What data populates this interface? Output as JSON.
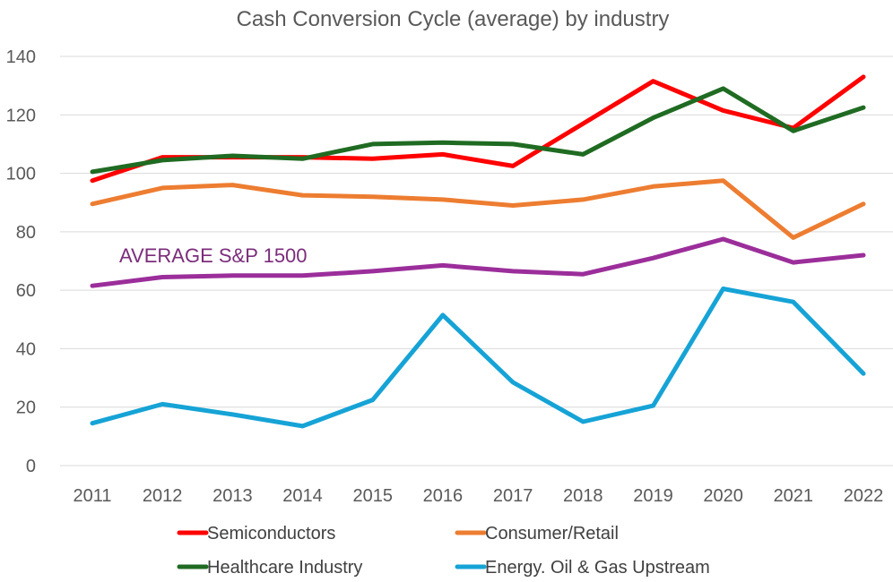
{
  "chart_data": {
    "type": "line",
    "title": "Cash Conversion Cycle (average) by industry",
    "xlabel": "",
    "ylabel": "",
    "categories": [
      "2011",
      "2012",
      "2013",
      "2014",
      "2015",
      "2016",
      "2017",
      "2018",
      "2019",
      "2020",
      "2021",
      "2022"
    ],
    "ylim": [
      0,
      140
    ],
    "yticks": [
      0,
      20,
      40,
      60,
      80,
      100,
      120,
      140
    ],
    "grid": true,
    "legend_position": "bottom",
    "series": [
      {
        "name": "Semiconductors",
        "color": "#ff0000",
        "values": [
          97.5,
          105.5,
          105.5,
          105.5,
          105,
          106.5,
          102.5,
          117,
          131.5,
          121.5,
          115.5,
          133
        ]
      },
      {
        "name": "Consumer/Retail",
        "color": "#ed7d31",
        "values": [
          89.5,
          95,
          96,
          92.5,
          92,
          91,
          89,
          91,
          95.5,
          97.5,
          78,
          89.5
        ]
      },
      {
        "name": "Healthcare Industry",
        "color": "#1f6b22",
        "values": [
          100.5,
          104.5,
          106,
          105,
          110,
          110.5,
          110,
          106.5,
          119,
          129,
          114.5,
          122.5
        ]
      },
      {
        "name": "Energy. Oil & Gas Upstream",
        "color": "#16a3d6",
        "values": [
          14.5,
          21,
          17.5,
          13.5,
          22.5,
          51.5,
          28.5,
          15,
          20.5,
          60.5,
          56,
          31.5
        ]
      },
      {
        "name": "",
        "color": "#9b2e9a",
        "values": [
          61.5,
          64.5,
          65,
          65,
          66.5,
          68.5,
          66.5,
          65.5,
          71,
          77.5,
          69.5,
          72
        ]
      }
    ],
    "annotations": [
      {
        "text": "AVERAGE S&P 1500",
        "color": "#7b2c7b"
      }
    ]
  }
}
